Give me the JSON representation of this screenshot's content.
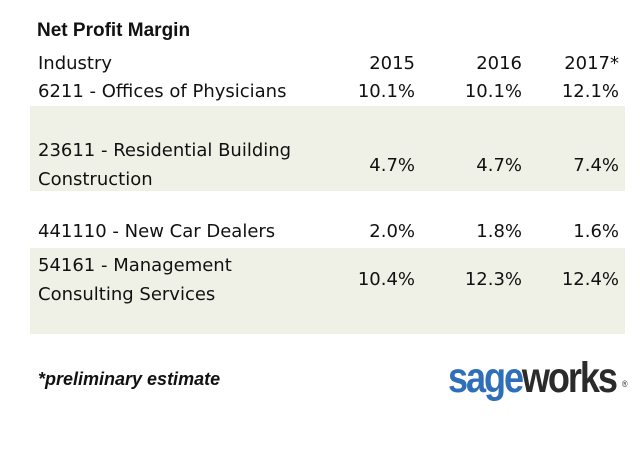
{
  "title": "Net Profit Margin",
  "table": {
    "columns": [
      "Industry",
      "2015",
      "2016",
      "2017*"
    ],
    "rows": [
      {
        "industry_lines": [
          "6211 - Offices of Physicians"
        ],
        "values": [
          "10.1%",
          "10.1%",
          "12.1%"
        ]
      },
      {
        "industry_lines": [
          "23611 - Residential Building",
          "Construction"
        ],
        "values": [
          "4.7%",
          "4.7%",
          "7.4%"
        ]
      },
      {
        "industry_lines": [
          "441110 - New Car Dealers"
        ],
        "values": [
          "2.0%",
          "1.8%",
          "1.6%"
        ]
      },
      {
        "industry_lines": [
          "54161 - Management",
          "Consulting Services"
        ],
        "values": [
          "10.4%",
          "12.3%",
          "12.4%"
        ]
      }
    ]
  },
  "footnote": "*preliminary estimate",
  "logo": {
    "part1": "sage",
    "part2": "works",
    "reg": "®"
  },
  "colors": {
    "row_shade": "#f0f1e6",
    "logo_blue": "#2f6fba",
    "logo_dark": "#2b2b2b"
  }
}
